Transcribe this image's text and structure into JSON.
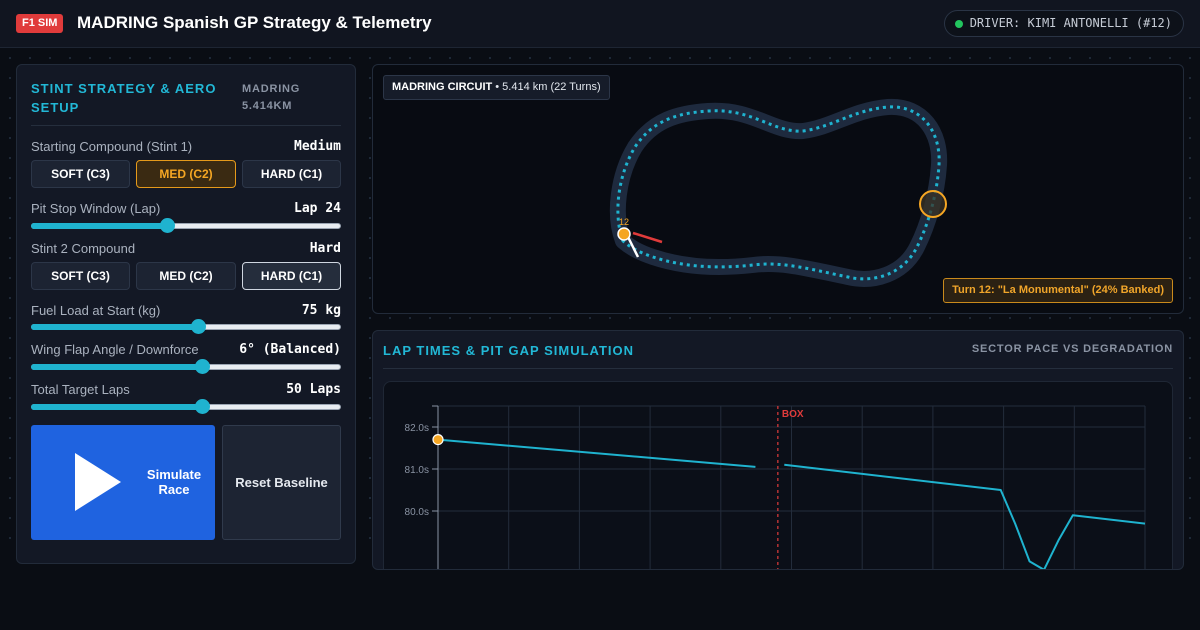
{
  "header": {
    "badge": "F1 SIM",
    "title": "MADRING Spanish GP Strategy & Telemetry",
    "driver": "DRIVER: KIMI ANTONELLI (#12)"
  },
  "strategy": {
    "title": "STINT STRATEGY & AERO SETUP",
    "subtitle": "MADRING 5.414KM",
    "stint1": {
      "label": "Starting Compound (Stint 1)",
      "value": "Medium",
      "options": [
        "SOFT (C3)",
        "MED (C2)",
        "HARD (C1)"
      ],
      "selected": "MED (C2)"
    },
    "pit_window": {
      "label": "Pit Stop Window (Lap)",
      "value": "Lap 24",
      "level": 0.44
    },
    "stint2": {
      "label": "Stint 2 Compound",
      "value": "Hard",
      "options": [
        "SOFT (C3)",
        "MED (C2)",
        "HARD (C1)"
      ],
      "selected": "HARD (C1)"
    },
    "fuel": {
      "label": "Fuel Load at Start (kg)",
      "value": "75 kg",
      "level": 0.54
    },
    "wing": {
      "label": "Wing Flap Angle / Downforce",
      "value": "6° (Balanced)",
      "level": 0.55
    },
    "laps": {
      "label": "Total Target Laps",
      "value": "50 Laps",
      "level": 0.55
    },
    "simulate_label": "Simulate Race",
    "reset_label": "Reset Baseline"
  },
  "track": {
    "tag_name": "MADRING CIRCUIT",
    "tag_detail": " • 5.414 km (22 Turns)",
    "car_number": "12",
    "turn_note": "Turn 12: \"La Monumental\" (24% Banked)",
    "colors": {
      "track": "#1e2a3e",
      "racing_line": "#1fb3cf",
      "highlight": "#f5a623",
      "car": "#f5a623"
    }
  },
  "laptimes": {
    "title": "LAP TIMES & PIT GAP SIMULATION",
    "subtitle": "SECTOR PACE VS DEGRADATION"
  },
  "chart_data": {
    "type": "line",
    "title": "LAP TIMES & PIT GAP SIMULATION",
    "ylabel": "",
    "xlabel": "",
    "y_ticks": [
      "82.0s",
      "81.0s",
      "80.0s"
    ],
    "y_tick_values": [
      82.0,
      81.0,
      80.0
    ],
    "ylim": [
      79.0,
      82.5
    ],
    "xlim": [
      1,
      50
    ],
    "grid": true,
    "annotation": {
      "label": "BOX",
      "lap": 24
    },
    "series": [
      {
        "color": "#1fb3cf",
        "points": [
          [
            1,
            81.7
          ],
          [
            23,
            81.05
          ],
          [
            25,
            81.1
          ],
          [
            40,
            80.5
          ],
          [
            41,
            79.7
          ],
          [
            42,
            78.8
          ],
          [
            43,
            78.6
          ],
          [
            44,
            79.3
          ],
          [
            45,
            79.9
          ],
          [
            50,
            79.7
          ]
        ],
        "gap_after_index": 1,
        "marker_index": 0
      }
    ]
  }
}
